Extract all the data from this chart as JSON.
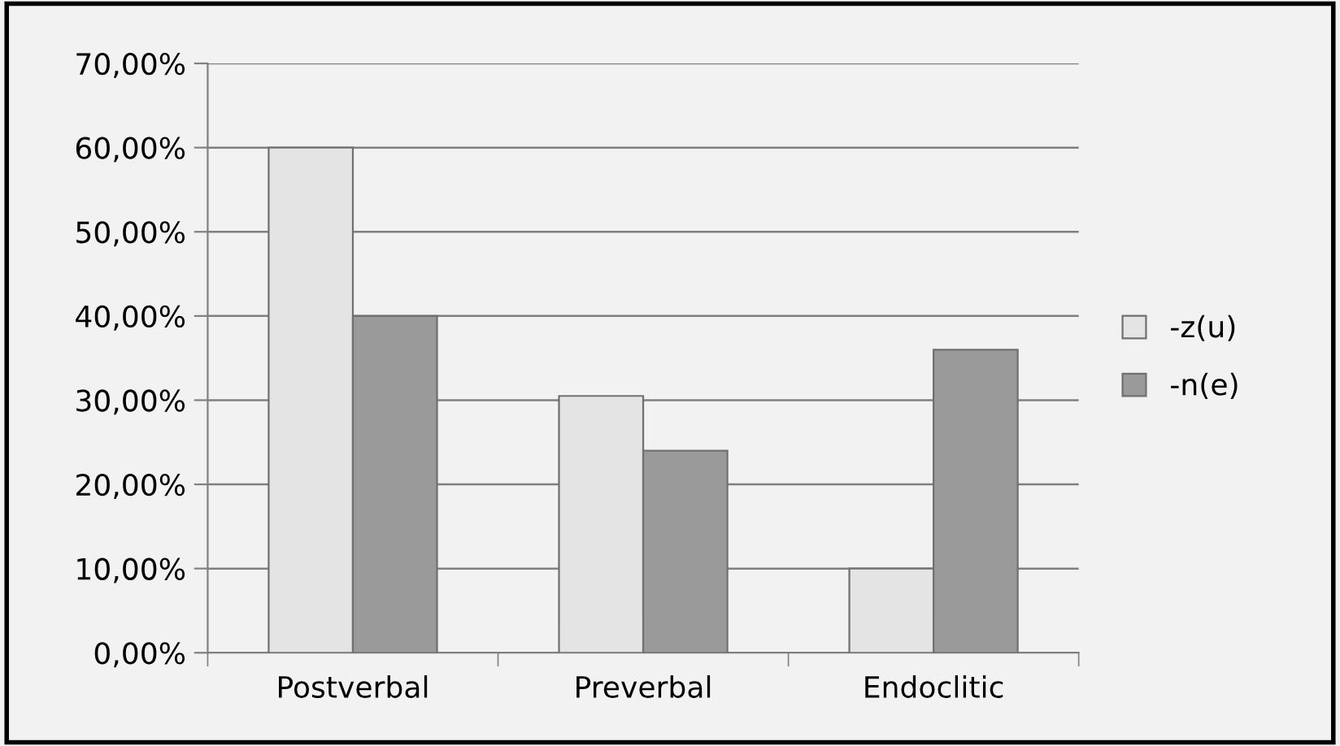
{
  "chart_data": {
    "type": "bar",
    "categories": [
      "Postverbal",
      "Preverbal",
      "Endoclitic"
    ],
    "series": [
      {
        "name": "-z(u)",
        "color": "#e4e4e4",
        "values": [
          60,
          30.5,
          10
        ]
      },
      {
        "name": "-n(e)",
        "color": "#9a9a9a",
        "values": [
          40,
          24,
          36
        ]
      }
    ],
    "ylim": [
      0,
      70
    ],
    "yticks": [
      {
        "value": 0,
        "label": "0,00%"
      },
      {
        "value": 10,
        "label": "10,00%"
      },
      {
        "value": 20,
        "label": "20,00%"
      },
      {
        "value": 30,
        "label": "30,00%"
      },
      {
        "value": 40,
        "label": "40,00%"
      },
      {
        "value": 50,
        "label": "50,00%"
      },
      {
        "value": 60,
        "label": "60,00%"
      },
      {
        "value": 70,
        "label": "70,00%"
      }
    ],
    "grid": "y",
    "legend": "right"
  }
}
